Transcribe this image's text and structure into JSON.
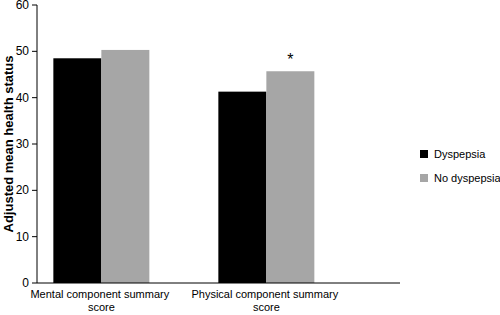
{
  "chart_data": {
    "type": "bar",
    "y_label": "Adjusted mean health status",
    "categories": [
      "Mental component summary score",
      "Physical component summary score"
    ],
    "series": [
      {
        "name": "Dyspepsia",
        "color": "#000000",
        "values": [
          48.5,
          41.3
        ]
      },
      {
        "name": "No dyspepsia",
        "color": "#a6a6a6",
        "values": [
          50.3,
          45.7
        ]
      }
    ],
    "annotations": [
      {
        "text": "*",
        "category": "Physical component summary score"
      }
    ],
    "ylim": [
      0,
      60
    ],
    "yticks": [
      0,
      10,
      20,
      30,
      40,
      50,
      60
    ],
    "grid": false,
    "legend": "right"
  }
}
